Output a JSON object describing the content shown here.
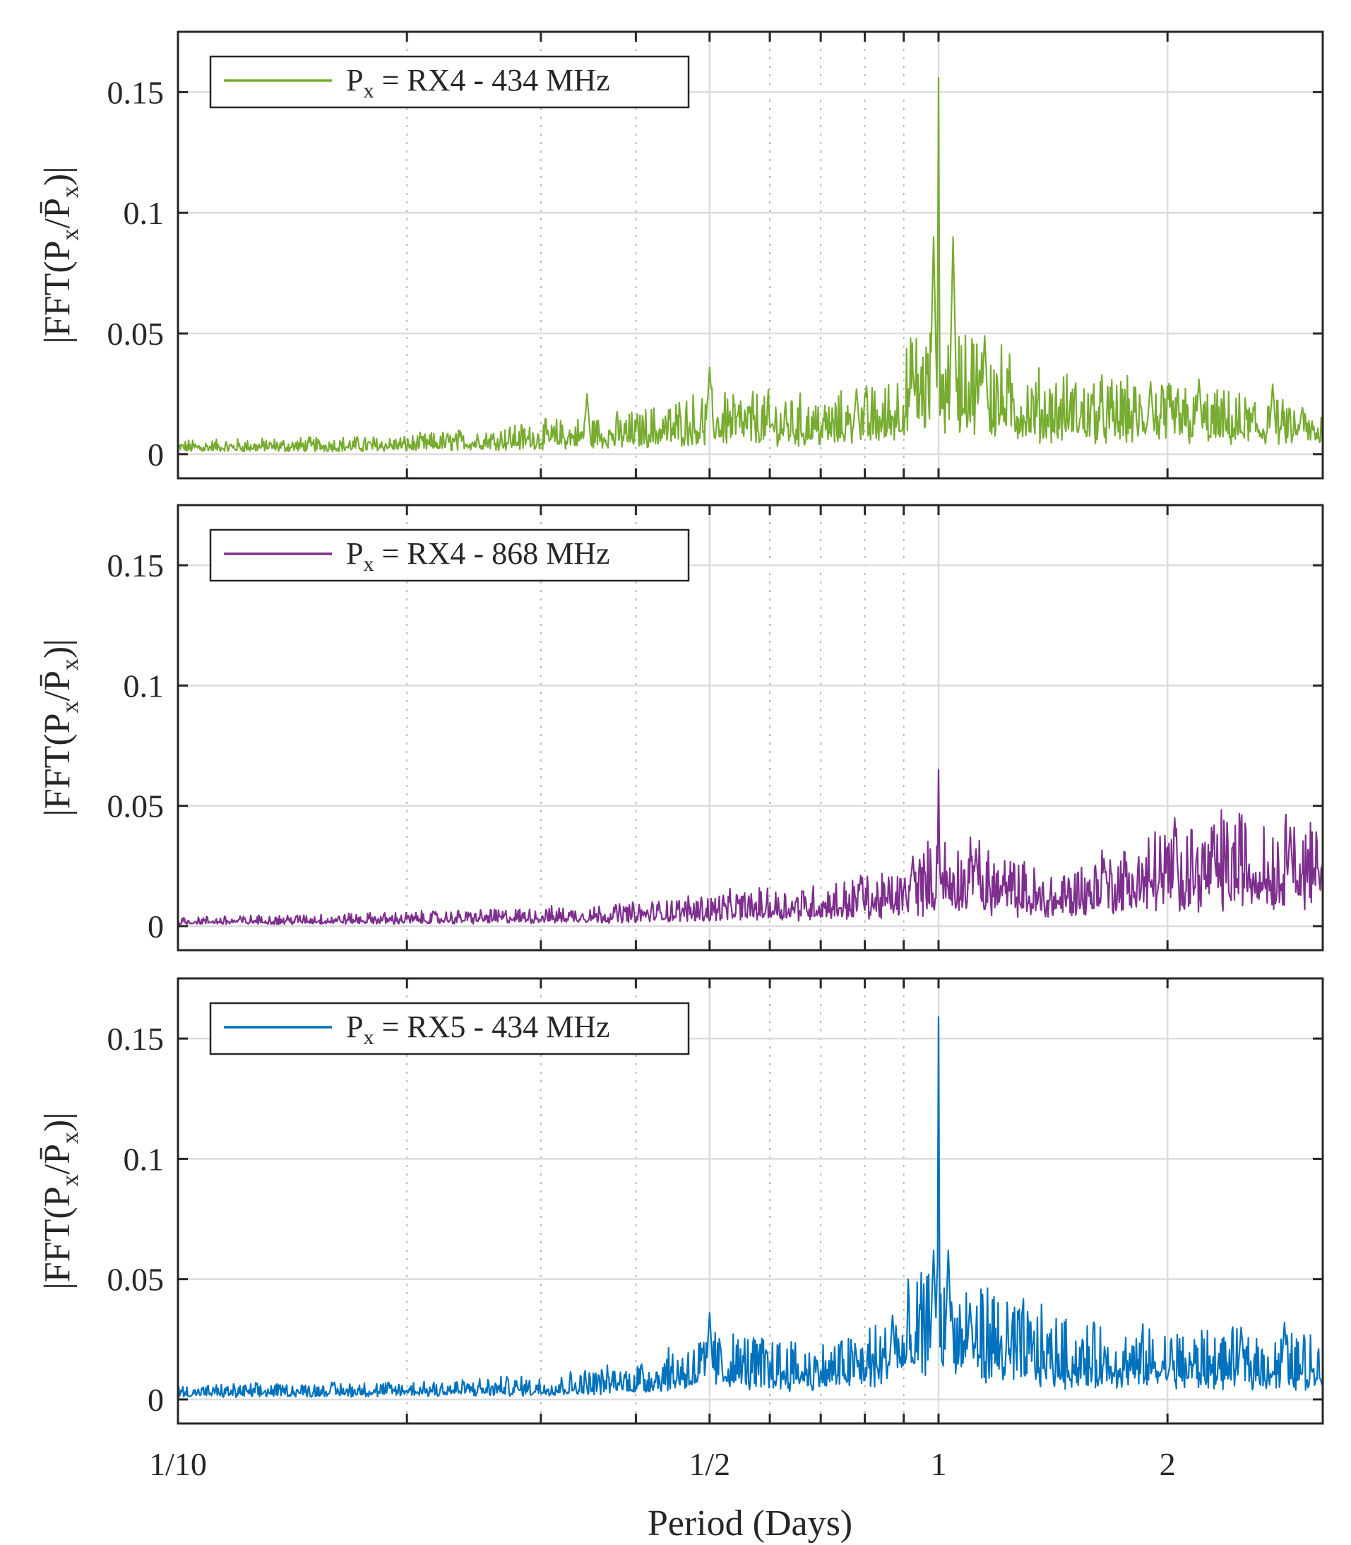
{
  "chart_data": [
    {
      "type": "line",
      "title": "",
      "xlabel": "",
      "ylabel": "|FFT(Px/P̄x)|",
      "x_scale": "log",
      "xlim": [
        0.1,
        3.2
      ],
      "ylim": [
        -0.01,
        0.175
      ],
      "grid": true,
      "legend_position": "top-left",
      "color": "#77AC30",
      "series": [
        {
          "name": "Px = RX4 - 434 MHz",
          "peaks": [
            {
              "x": 0.345,
              "y": 0.025
            },
            {
              "x": 0.5,
              "y": 0.036
            },
            {
              "x": 0.78,
              "y": 0.027
            },
            {
              "x": 0.925,
              "y": 0.035
            },
            {
              "x": 0.985,
              "y": 0.09
            },
            {
              "x": 1.0,
              "y": 0.156
            },
            {
              "x": 1.045,
              "y": 0.09
            },
            {
              "x": 1.15,
              "y": 0.049
            },
            {
              "x": 1.9,
              "y": 0.03
            },
            {
              "x": 2.2,
              "y": 0.031
            },
            {
              "x": 2.75,
              "y": 0.029
            },
            {
              "x": 3.0,
              "y": 0.017
            }
          ],
          "envelope": [
            {
              "x": 0.1,
              "y": 0.003
            },
            {
              "x": 0.2,
              "y": 0.004
            },
            {
              "x": 0.3,
              "y": 0.007
            },
            {
              "x": 0.4,
              "y": 0.009
            },
            {
              "x": 0.5,
              "y": 0.014
            },
            {
              "x": 0.7,
              "y": 0.012
            },
            {
              "x": 0.85,
              "y": 0.015
            },
            {
              "x": 0.95,
              "y": 0.028
            },
            {
              "x": 1.1,
              "y": 0.028
            },
            {
              "x": 1.3,
              "y": 0.018
            },
            {
              "x": 2.0,
              "y": 0.015
            },
            {
              "x": 3.2,
              "y": 0.01
            }
          ]
        }
      ]
    },
    {
      "type": "line",
      "title": "",
      "xlabel": "",
      "ylabel": "|FFT(Px/P̄x)|",
      "x_scale": "log",
      "xlim": [
        0.1,
        3.2
      ],
      "ylim": [
        -0.01,
        0.175
      ],
      "grid": true,
      "legend_position": "top-left",
      "color": "#7E2F8E",
      "series": [
        {
          "name": "Px = RX4 - 868 MHz",
          "peaks": [
            {
              "x": 0.79,
              "y": 0.021
            },
            {
              "x": 0.925,
              "y": 0.029
            },
            {
              "x": 1.0,
              "y": 0.065
            },
            {
              "x": 1.12,
              "y": 0.032
            },
            {
              "x": 1.65,
              "y": 0.028
            },
            {
              "x": 2.05,
              "y": 0.038
            },
            {
              "x": 2.3,
              "y": 0.035
            },
            {
              "x": 2.9,
              "y": 0.041
            },
            {
              "x": 3.15,
              "y": 0.024
            }
          ],
          "envelope": [
            {
              "x": 0.1,
              "y": 0.002
            },
            {
              "x": 0.2,
              "y": 0.003
            },
            {
              "x": 0.3,
              "y": 0.004
            },
            {
              "x": 0.4,
              "y": 0.005
            },
            {
              "x": 0.5,
              "y": 0.007
            },
            {
              "x": 0.7,
              "y": 0.009
            },
            {
              "x": 0.9,
              "y": 0.012
            },
            {
              "x": 1.0,
              "y": 0.02
            },
            {
              "x": 1.2,
              "y": 0.016
            },
            {
              "x": 1.4,
              "y": 0.011
            },
            {
              "x": 1.7,
              "y": 0.017
            },
            {
              "x": 2.0,
              "y": 0.022
            },
            {
              "x": 2.5,
              "y": 0.025
            },
            {
              "x": 3.2,
              "y": 0.022
            }
          ]
        }
      ]
    },
    {
      "type": "line",
      "title": "",
      "xlabel": "Period (Days)",
      "ylabel": "|FFT(Px/P̄x)|",
      "x_scale": "log",
      "xlim": [
        0.1,
        3.2
      ],
      "ylim": [
        -0.01,
        0.175
      ],
      "grid": true,
      "legend_position": "top-left",
      "color": "#0072BD",
      "series": [
        {
          "name": "Px = RX5 - 434 MHz",
          "peaks": [
            {
              "x": 0.5,
              "y": 0.036
            },
            {
              "x": 0.87,
              "y": 0.035
            },
            {
              "x": 0.985,
              "y": 0.062
            },
            {
              "x": 1.0,
              "y": 0.159
            },
            {
              "x": 1.03,
              "y": 0.062
            },
            {
              "x": 1.1,
              "y": 0.04
            },
            {
              "x": 2.5,
              "y": 0.03
            },
            {
              "x": 2.85,
              "y": 0.032
            },
            {
              "x": 3.2,
              "y": 0.006
            }
          ],
          "envelope": [
            {
              "x": 0.1,
              "y": 0.003
            },
            {
              "x": 0.2,
              "y": 0.004
            },
            {
              "x": 0.3,
              "y": 0.005
            },
            {
              "x": 0.4,
              "y": 0.008
            },
            {
              "x": 0.5,
              "y": 0.015
            },
            {
              "x": 0.7,
              "y": 0.012
            },
            {
              "x": 0.85,
              "y": 0.017
            },
            {
              "x": 0.95,
              "y": 0.027
            },
            {
              "x": 1.1,
              "y": 0.026
            },
            {
              "x": 1.5,
              "y": 0.016
            },
            {
              "x": 2.0,
              "y": 0.015
            },
            {
              "x": 3.2,
              "y": 0.014
            }
          ]
        }
      ]
    }
  ],
  "axes": {
    "x_ticks": [
      {
        "value": 0.1,
        "label": "1/10"
      },
      {
        "value": 0.5,
        "label": "1/2"
      },
      {
        "value": 1,
        "label": "1"
      },
      {
        "value": 2,
        "label": "2"
      }
    ],
    "x_minor_ticks": [
      0.2,
      0.3,
      0.4,
      0.6,
      0.7,
      0.8,
      0.9
    ],
    "y_ticks": [
      {
        "value": 0,
        "label": "0"
      },
      {
        "value": 0.05,
        "label": "0.05"
      },
      {
        "value": 0.1,
        "label": "0.1"
      },
      {
        "value": 0.15,
        "label": "0.15"
      }
    ]
  },
  "legend_labels": {
    "p1": {
      "sym": "P",
      "sub": "x",
      "rest": " = RX4 - 434 MHz"
    },
    "p2": {
      "sym": "P",
      "sub": "x",
      "rest": " = RX4 - 868 MHz"
    },
    "p3": {
      "sym": "P",
      "sub": "x",
      "rest": " = RX5 - 434 MHz"
    }
  },
  "y_label_text": {
    "pre": "|FFT(P",
    "sub1": "x",
    "mid": "/",
    "bar": "P̄",
    "sub2": "x",
    "post": ")|"
  },
  "x_title_text": "Period (Days)"
}
